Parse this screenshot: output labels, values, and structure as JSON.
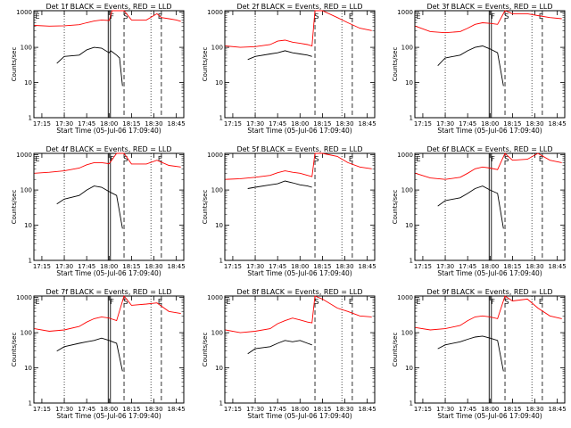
{
  "figure": {
    "time_ticks": [
      "17:15",
      "17:30",
      "17:45",
      "18:00",
      "18:15",
      "18:30",
      "18:45"
    ],
    "y_ticks": [
      "1",
      "10",
      "100",
      "1000"
    ],
    "ylabel": "Counts/sec",
    "xlabel": "Start Time (05-Jul-06 17:09:40)",
    "colors": {
      "events": "#000000",
      "lld": "#ff0000"
    }
  },
  "chart_data": [
    {
      "type": "line",
      "title": "Det 1f BLACK = Events, RED = LLD",
      "xlabel": "Start Time (05-Jul-06 17:09:40)",
      "ylabel": "Counts/sec",
      "ylim": [
        1,
        1100
      ],
      "yscale": "log",
      "xlim": [
        "17:09:40",
        "18:50"
      ],
      "markers": [
        {
          "label": "E",
          "x": "17:10"
        },
        {
          "label": "F",
          "x": "18:00"
        },
        {
          "label": "S",
          "x": "18:09"
        },
        {
          "label": "E",
          "x": "18:32"
        }
      ],
      "series": [
        {
          "name": "Events",
          "color": "#000000",
          "x": [
            "17:25",
            "17:30",
            "17:40",
            "17:45",
            "17:50",
            "17:55",
            "18:00",
            "18:01",
            "18:02",
            "18:05",
            "18:07",
            "18:09"
          ],
          "values": [
            35,
            55,
            60,
            85,
            100,
            95,
            70,
            80,
            75,
            60,
            50,
            8
          ]
        },
        {
          "name": "LLD",
          "color": "#ff0000",
          "x": [
            "17:10",
            "17:20",
            "17:30",
            "17:40",
            "17:45",
            "17:50",
            "17:55",
            "18:00",
            "18:02",
            "18:05",
            "18:08",
            "18:10",
            "18:15",
            "18:25",
            "18:32",
            "18:35",
            "18:40",
            "18:45",
            "18:48"
          ],
          "values": [
            420,
            400,
            410,
            440,
            500,
            560,
            600,
            580,
            1100,
            1100,
            1100,
            1100,
            600,
            600,
            900,
            700,
            650,
            600,
            550
          ]
        }
      ]
    },
    {
      "type": "line",
      "title": "Det 2f BLACK = Events, RED = LLD",
      "xlabel": "Start Time (05-Jul-06 17:09:40)",
      "ylabel": "Counts/sec",
      "ylim": [
        1,
        1100
      ],
      "yscale": "log",
      "xlim": [
        "17:09:40",
        "18:50"
      ],
      "markers": [
        {
          "label": "S",
          "x": "18:09"
        },
        {
          "label": "E",
          "x": "18:32"
        }
      ],
      "series": [
        {
          "name": "Events",
          "color": "#000000",
          "x": [
            "17:25",
            "17:30",
            "17:40",
            "17:45",
            "17:50",
            "17:55",
            "18:00",
            "18:05",
            "18:08"
          ],
          "values": [
            45,
            55,
            65,
            70,
            80,
            70,
            65,
            60,
            55
          ]
        },
        {
          "name": "LLD",
          "color": "#ff0000",
          "x": [
            "17:10",
            "17:20",
            "17:30",
            "17:40",
            "17:45",
            "17:50",
            "17:55",
            "18:00",
            "18:05",
            "18:08",
            "18:10",
            "18:15",
            "18:25",
            "18:32",
            "18:40",
            "18:48"
          ],
          "values": [
            110,
            100,
            105,
            120,
            150,
            160,
            140,
            130,
            120,
            110,
            1100,
            1100,
            700,
            500,
            350,
            300
          ]
        }
      ]
    },
    {
      "type": "line",
      "title": "Det 3f BLACK = Events, RED = LLD",
      "xlabel": "Start Time (05-Jul-06 17:09:40)",
      "ylabel": "Counts/sec",
      "ylim": [
        1,
        1100
      ],
      "yscale": "log",
      "xlim": [
        "17:09:40",
        "18:50"
      ],
      "markers": [
        {
          "label": "E",
          "x": "17:10"
        },
        {
          "label": "F",
          "x": "18:00"
        },
        {
          "label": "S",
          "x": "18:09"
        },
        {
          "label": "E",
          "x": "18:32"
        }
      ],
      "series": [
        {
          "name": "Events",
          "color": "#000000",
          "x": [
            "17:25",
            "17:30",
            "17:40",
            "17:45",
            "17:50",
            "17:55",
            "18:00",
            "18:05",
            "18:09"
          ],
          "values": [
            30,
            50,
            60,
            80,
            100,
            110,
            90,
            70,
            8
          ]
        },
        {
          "name": "LLD",
          "color": "#ff0000",
          "x": [
            "17:10",
            "17:20",
            "17:30",
            "17:40",
            "17:45",
            "17:50",
            "17:55",
            "18:00",
            "18:05",
            "18:10",
            "18:15",
            "18:25",
            "18:32",
            "18:40",
            "18:48"
          ],
          "values": [
            400,
            280,
            260,
            280,
            350,
            450,
            500,
            480,
            450,
            1100,
            900,
            900,
            800,
            700,
            650
          ]
        }
      ]
    },
    {
      "type": "line",
      "title": "Det 4f BLACK = Events, RED = LLD",
      "xlabel": "Start Time (05-Jul-06 17:09:40)",
      "ylabel": "Counts/sec",
      "ylim": [
        1,
        1100
      ],
      "yscale": "log",
      "xlim": [
        "17:09:40",
        "18:50"
      ],
      "markers": [
        {
          "label": "E",
          "x": "17:10"
        },
        {
          "label": "F",
          "x": "18:00"
        },
        {
          "label": "S",
          "x": "18:09"
        },
        {
          "label": "E",
          "x": "18:32"
        }
      ],
      "series": [
        {
          "name": "Events",
          "color": "#000000",
          "x": [
            "17:25",
            "17:30",
            "17:40",
            "17:45",
            "17:50",
            "17:55",
            "18:00",
            "18:05",
            "18:09"
          ],
          "values": [
            40,
            55,
            70,
            100,
            130,
            120,
            90,
            70,
            8
          ]
        },
        {
          "name": "LLD",
          "color": "#ff0000",
          "x": [
            "17:10",
            "17:20",
            "17:30",
            "17:40",
            "17:45",
            "17:50",
            "17:55",
            "18:00",
            "18:05",
            "18:10",
            "18:15",
            "18:25",
            "18:32",
            "18:40",
            "18:48"
          ],
          "values": [
            300,
            320,
            350,
            420,
            520,
            600,
            600,
            560,
            1100,
            1100,
            550,
            550,
            700,
            500,
            450
          ]
        }
      ]
    },
    {
      "type": "line",
      "title": "Det 5f BLACK = Events, RED = LLD",
      "xlabel": "Start Time (05-Jul-06 17:09:40)",
      "ylabel": "Counts/sec",
      "ylim": [
        1,
        1100
      ],
      "yscale": "log",
      "xlim": [
        "17:09:40",
        "18:50"
      ],
      "markers": [
        {
          "label": "S",
          "x": "18:09"
        },
        {
          "label": "E",
          "x": "18:32"
        }
      ],
      "series": [
        {
          "name": "Events",
          "color": "#000000",
          "x": [
            "17:25",
            "17:30",
            "17:40",
            "17:45",
            "17:50",
            "17:55",
            "18:00",
            "18:05",
            "18:08"
          ],
          "values": [
            110,
            120,
            140,
            150,
            180,
            160,
            140,
            130,
            120
          ]
        },
        {
          "name": "LLD",
          "color": "#ff0000",
          "x": [
            "17:10",
            "17:20",
            "17:30",
            "17:40",
            "17:45",
            "17:50",
            "17:55",
            "18:00",
            "18:05",
            "18:08",
            "18:10",
            "18:15",
            "18:25",
            "18:32",
            "18:40",
            "18:48"
          ],
          "values": [
            200,
            210,
            230,
            260,
            310,
            350,
            320,
            300,
            260,
            240,
            1100,
            1100,
            900,
            600,
            450,
            400
          ]
        }
      ]
    },
    {
      "type": "line",
      "title": "Det 6f BLACK = Events, RED = LLD",
      "xlabel": "Start Time (05-Jul-06 17:09:40)",
      "ylabel": "Counts/sec",
      "ylim": [
        1,
        1100
      ],
      "yscale": "log",
      "xlim": [
        "17:09:40",
        "18:50"
      ],
      "markers": [
        {
          "label": "E",
          "x": "17:10"
        },
        {
          "label": "F",
          "x": "18:00"
        },
        {
          "label": "S",
          "x": "18:09"
        },
        {
          "label": "E",
          "x": "18:32"
        }
      ],
      "series": [
        {
          "name": "Events",
          "color": "#000000",
          "x": [
            "17:25",
            "17:30",
            "17:40",
            "17:45",
            "17:50",
            "17:55",
            "18:00",
            "18:05",
            "18:09"
          ],
          "values": [
            35,
            50,
            60,
            80,
            110,
            130,
            100,
            80,
            8
          ]
        },
        {
          "name": "LLD",
          "color": "#ff0000",
          "x": [
            "17:10",
            "17:20",
            "17:30",
            "17:40",
            "17:45",
            "17:50",
            "17:55",
            "18:00",
            "18:05",
            "18:10",
            "18:15",
            "18:25",
            "18:32",
            "18:40",
            "18:48"
          ],
          "values": [
            300,
            220,
            200,
            230,
            300,
            400,
            450,
            420,
            380,
            1100,
            700,
            750,
            1100,
            700,
            600
          ]
        }
      ]
    },
    {
      "type": "line",
      "title": "Det 7f BLACK = Events, RED = LLD",
      "xlabel": "Start Time (05-Jul-06 17:09:40)",
      "ylabel": "Counts/sec",
      "ylim": [
        1,
        1100
      ],
      "yscale": "log",
      "xlim": [
        "17:09:40",
        "18:50"
      ],
      "markers": [
        {
          "label": "E",
          "x": "17:10"
        },
        {
          "label": "F",
          "x": "18:00"
        },
        {
          "label": "S",
          "x": "18:09"
        },
        {
          "label": "E",
          "x": "18:32"
        }
      ],
      "series": [
        {
          "name": "Events",
          "color": "#000000",
          "x": [
            "17:25",
            "17:30",
            "17:40",
            "17:45",
            "17:50",
            "17:55",
            "18:00",
            "18:05",
            "18:09"
          ],
          "values": [
            30,
            40,
            50,
            55,
            60,
            70,
            60,
            50,
            8
          ]
        },
        {
          "name": "LLD",
          "color": "#ff0000",
          "x": [
            "17:10",
            "17:20",
            "17:30",
            "17:40",
            "17:45",
            "17:50",
            "17:55",
            "18:00",
            "18:05",
            "18:10",
            "18:15",
            "18:25",
            "18:32",
            "18:40",
            "18:48"
          ],
          "values": [
            130,
            110,
            120,
            150,
            200,
            250,
            280,
            260,
            220,
            1100,
            600,
            650,
            700,
            400,
            350
          ]
        }
      ]
    },
    {
      "type": "line",
      "title": "Det 8f BLACK = Events, RED = LLD",
      "xlabel": "Start Time (05-Jul-06 17:09:40)",
      "ylabel": "Counts/sec",
      "ylim": [
        1,
        1100
      ],
      "yscale": "log",
      "xlim": [
        "17:09:40",
        "18:50"
      ],
      "markers": [
        {
          "label": "E",
          "x": "17:10"
        },
        {
          "label": "S",
          "x": "18:09"
        },
        {
          "label": "E",
          "x": "18:32"
        }
      ],
      "series": [
        {
          "name": "Events",
          "color": "#000000",
          "x": [
            "17:25",
            "17:30",
            "17:40",
            "17:45",
            "17:50",
            "17:55",
            "18:00",
            "18:05",
            "18:08"
          ],
          "values": [
            25,
            35,
            40,
            50,
            60,
            55,
            60,
            50,
            45
          ]
        },
        {
          "name": "LLD",
          "color": "#ff0000",
          "x": [
            "17:10",
            "17:20",
            "17:30",
            "17:40",
            "17:45",
            "17:50",
            "17:55",
            "18:00",
            "18:05",
            "18:08",
            "18:10",
            "18:15",
            "18:25",
            "18:32",
            "18:40",
            "18:48"
          ],
          "values": [
            120,
            100,
            110,
            130,
            180,
            220,
            260,
            230,
            200,
            190,
            1100,
            900,
            500,
            400,
            300,
            280
          ]
        }
      ]
    },
    {
      "type": "line",
      "title": "Det 9f BLACK = Events, RED = LLD",
      "xlabel": "Start Time (05-Jul-06 17:09:40)",
      "ylabel": "Counts/sec",
      "ylim": [
        1,
        1100
      ],
      "yscale": "log",
      "xlim": [
        "17:09:40",
        "18:50"
      ],
      "markers": [
        {
          "label": "E",
          "x": "17:10"
        },
        {
          "label": "F",
          "x": "18:00"
        },
        {
          "label": "S",
          "x": "18:09"
        },
        {
          "label": "E",
          "x": "18:32"
        }
      ],
      "series": [
        {
          "name": "Events",
          "color": "#000000",
          "x": [
            "17:25",
            "17:30",
            "17:40",
            "17:45",
            "17:50",
            "17:55",
            "18:00",
            "18:05",
            "18:09"
          ],
          "values": [
            35,
            45,
            55,
            65,
            75,
            80,
            70,
            60,
            8
          ]
        },
        {
          "name": "LLD",
          "color": "#ff0000",
          "x": [
            "17:10",
            "17:20",
            "17:30",
            "17:40",
            "17:45",
            "17:50",
            "17:55",
            "18:00",
            "18:05",
            "18:10",
            "18:15",
            "18:25",
            "18:32",
            "18:40",
            "18:48"
          ],
          "values": [
            140,
            120,
            130,
            160,
            220,
            280,
            300,
            280,
            250,
            1100,
            800,
            900,
            500,
            300,
            250
          ]
        }
      ]
    }
  ]
}
